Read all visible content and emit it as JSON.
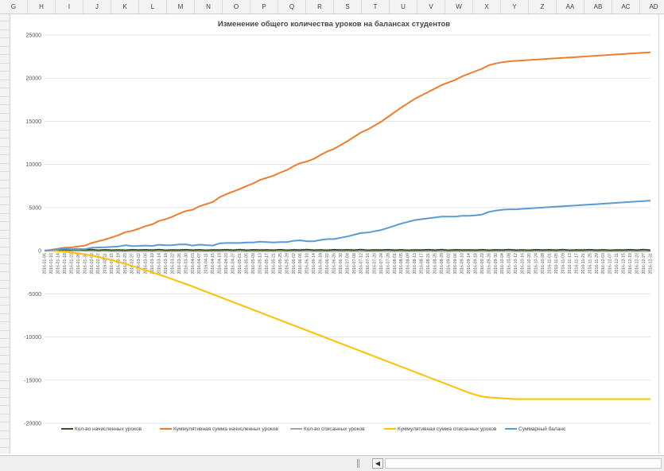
{
  "spreadsheet": {
    "columns": [
      "G",
      "H",
      "I",
      "J",
      "K",
      "L",
      "M",
      "N",
      "O",
      "P",
      "Q",
      "R",
      "S",
      "T",
      "U",
      "V",
      "W",
      "X",
      "Y",
      "Z",
      "AA",
      "AB",
      "AC",
      "AD"
    ],
    "scroll_left_glyph": "◀"
  },
  "chart_data": {
    "type": "line",
    "title": "Изменение общего количества уроков на балансах студентов",
    "xlabel": "",
    "ylabel": "",
    "ylim": [
      -20000,
      25000
    ],
    "yticks": [
      25000,
      20000,
      15000,
      10000,
      5000,
      0,
      -5000,
      -10000,
      -15000,
      -20000
    ],
    "grid": true,
    "legend_position": "bottom",
    "x": [
      "2016-01-06",
      "2016-01-10",
      "2016-01-14",
      "2016-01-18",
      "2016-01-22",
      "2016-01-26",
      "2016-01-30",
      "2016-02-03",
      "2016-02-07",
      "2016-02-11",
      "2016-02-15",
      "2016-02-19",
      "2016-02-23",
      "2016-02-27",
      "2016-03-02",
      "2016-03-06",
      "2016-03-10",
      "2016-03-14",
      "2016-03-18",
      "2016-03-22",
      "2016-03-26",
      "2016-03-30",
      "2016-04-03",
      "2016-04-07",
      "2016-04-11",
      "2016-04-15",
      "2016-04-19",
      "2016-04-23",
      "2016-04-27",
      "2016-05-01",
      "2016-05-05",
      "2016-05-09",
      "2016-05-13",
      "2016-05-17",
      "2016-05-21",
      "2016-05-25",
      "2016-05-29",
      "2016-06-02",
      "2016-06-06",
      "2016-06-10",
      "2016-06-14",
      "2016-06-18",
      "2016-06-22",
      "2016-06-26",
      "2016-06-30",
      "2016-07-04",
      "2016-07-08",
      "2016-07-12",
      "2016-07-16",
      "2016-07-20",
      "2016-07-24",
      "2016-07-28",
      "2016-08-01",
      "2016-08-05",
      "2016-08-09",
      "2016-08-13",
      "2016-08-17",
      "2016-08-21",
      "2016-08-25",
      "2016-08-29",
      "2016-09-02",
      "2016-09-06",
      "2016-09-10",
      "2016-09-14",
      "2016-09-18",
      "2016-09-22",
      "2016-09-26",
      "2016-09-30",
      "2016-10-04",
      "2016-10-08",
      "2016-10-12",
      "2016-10-16",
      "2016-10-20",
      "2016-10-24",
      "2016-10-28",
      "2016-11-01",
      "2016-11-05",
      "2016-11-09",
      "2016-11-13",
      "2016-11-17",
      "2016-11-21",
      "2016-11-25",
      "2016-11-29",
      "2016-12-03",
      "2016-12-07",
      "2016-12-11",
      "2016-12-15",
      "2016-12-19",
      "2016-12-23",
      "2016-12-27",
      "2016-12-31"
    ],
    "series": [
      {
        "name": "Кол-во начисленных уроков",
        "color": "#375623",
        "values": [
          20,
          40,
          60,
          90,
          110,
          150,
          80,
          120,
          60,
          100,
          70,
          90,
          60,
          110,
          80,
          100,
          70,
          120,
          60,
          90,
          80,
          110,
          70,
          100,
          60,
          90,
          80,
          110,
          70,
          120,
          60,
          100,
          80,
          90,
          70,
          110,
          60,
          100,
          80,
          120,
          70,
          90,
          60,
          110,
          80,
          100,
          70,
          120,
          60,
          90,
          80,
          110,
          70,
          100,
          60,
          90,
          80,
          110,
          70,
          120,
          60,
          100,
          80,
          90,
          70,
          110,
          60,
          100,
          80,
          120,
          70,
          90,
          60,
          110,
          80,
          100,
          70,
          120,
          60,
          90,
          80,
          110,
          70,
          100,
          60,
          90,
          80,
          110,
          70,
          120,
          60
        ]
      },
      {
        "name": "Куммулятивная сумма начисленных уроков",
        "color": "#ed7d31",
        "values": [
          0,
          100,
          230,
          350,
          380,
          500,
          600,
          900,
          1100,
          1300,
          1550,
          1800,
          2150,
          2300,
          2550,
          2850,
          3050,
          3450,
          3650,
          3950,
          4300,
          4600,
          4750,
          5150,
          5400,
          5650,
          6200,
          6550,
          6850,
          7150,
          7500,
          7800,
          8200,
          8450,
          8700,
          9050,
          9350,
          9800,
          10150,
          10350,
          10650,
          11100,
          11500,
          11800,
          12250,
          12700,
          13200,
          13700,
          14050,
          14500,
          14950,
          15500,
          16050,
          16600,
          17100,
          17600,
          18000,
          18400,
          18800,
          19200,
          19500,
          19800,
          20200,
          20500,
          20800,
          21100,
          21500,
          21700,
          21850,
          21950,
          22000,
          22050,
          22100,
          22150,
          22200,
          22250,
          22300,
          22350,
          22400,
          22450,
          22500,
          22550,
          22600,
          22650,
          22700,
          22750,
          22800,
          22850,
          22900,
          22950,
          23000
        ]
      },
      {
        "name": "Кол-во списанных уроков",
        "color": "#a5a5a5",
        "values": [
          0,
          -10,
          -20,
          -30,
          -40,
          -50,
          -60,
          -70,
          -80,
          -70,
          -90,
          -80,
          -100,
          -90,
          -80,
          -100,
          -90,
          -110,
          -100,
          -90,
          -80,
          -100,
          -90,
          -110,
          -100,
          -90,
          -80,
          -100,
          -90,
          -110,
          -100,
          -90,
          -80,
          -100,
          -90,
          -110,
          -100,
          -90,
          -80,
          -100,
          -90,
          -110,
          -100,
          -90,
          -80,
          -100,
          -90,
          -110,
          -100,
          -90,
          -80,
          -100,
          -90,
          -110,
          -100,
          -90,
          -80,
          -100,
          -90,
          -110,
          -100,
          -90,
          -80,
          -100,
          -90,
          -110,
          -100,
          -90,
          -80,
          -100,
          -90,
          -110,
          -100,
          -90,
          -80,
          -100,
          -90,
          -110,
          -100,
          -90,
          -80,
          -100,
          -90,
          -110,
          -100,
          -90,
          -80,
          -100,
          -90,
          -110,
          -100
        ]
      },
      {
        "name": "Куммулятивная сумма списанных уроков",
        "color": "#ffc000",
        "values": [
          0,
          -20,
          -60,
          -120,
          -200,
          -300,
          -420,
          -560,
          -720,
          -900,
          -1100,
          -1300,
          -1520,
          -1760,
          -2000,
          -2250,
          -2500,
          -2760,
          -3020,
          -3300,
          -3580,
          -3860,
          -4150,
          -4450,
          -4750,
          -5050,
          -5350,
          -5650,
          -5950,
          -6250,
          -6550,
          -6850,
          -7150,
          -7450,
          -7750,
          -8050,
          -8350,
          -8650,
          -8950,
          -9250,
          -9550,
          -9850,
          -10150,
          -10450,
          -10750,
          -11050,
          -11350,
          -11650,
          -11950,
          -12250,
          -12550,
          -12850,
          -13150,
          -13450,
          -13750,
          -14050,
          -14350,
          -14650,
          -14950,
          -15250,
          -15550,
          -15850,
          -16150,
          -16450,
          -16700,
          -16900,
          -17000,
          -17050,
          -17100,
          -17150,
          -17200,
          -17200,
          -17200,
          -17200,
          -17200,
          -17200,
          -17200,
          -17200,
          -17200,
          -17200,
          -17200,
          -17200,
          -17200,
          -17200,
          -17200,
          -17200,
          -17200,
          -17200,
          -17200,
          -17200,
          -17200
        ]
      },
      {
        "name": "Суммарный баланс",
        "color": "#5b9bd5",
        "values": [
          0,
          80,
          170,
          230,
          180,
          200,
          180,
          340,
          380,
          400,
          450,
          500,
          630,
          540,
          550,
          600,
          550,
          690,
          630,
          650,
          720,
          740,
          600,
          700,
          650,
          600,
          850,
          900,
          900,
          900,
          950,
          950,
          1050,
          1000,
          950,
          1000,
          1000,
          1150,
          1200,
          1100,
          1100,
          1250,
          1350,
          1350,
          1500,
          1650,
          1850,
          2050,
          2100,
          2250,
          2400,
          2650,
          2900,
          3150,
          3350,
          3550,
          3650,
          3750,
          3850,
          3950,
          3950,
          3950,
          4050,
          4050,
          4100,
          4200,
          4500,
          4650,
          4750,
          4800,
          4800,
          4850,
          4900,
          4950,
          5000,
          5050,
          5100,
          5150,
          5200,
          5250,
          5300,
          5350,
          5400,
          5450,
          5500,
          5550,
          5600,
          5650,
          5700,
          5750,
          5800
        ]
      }
    ]
  }
}
